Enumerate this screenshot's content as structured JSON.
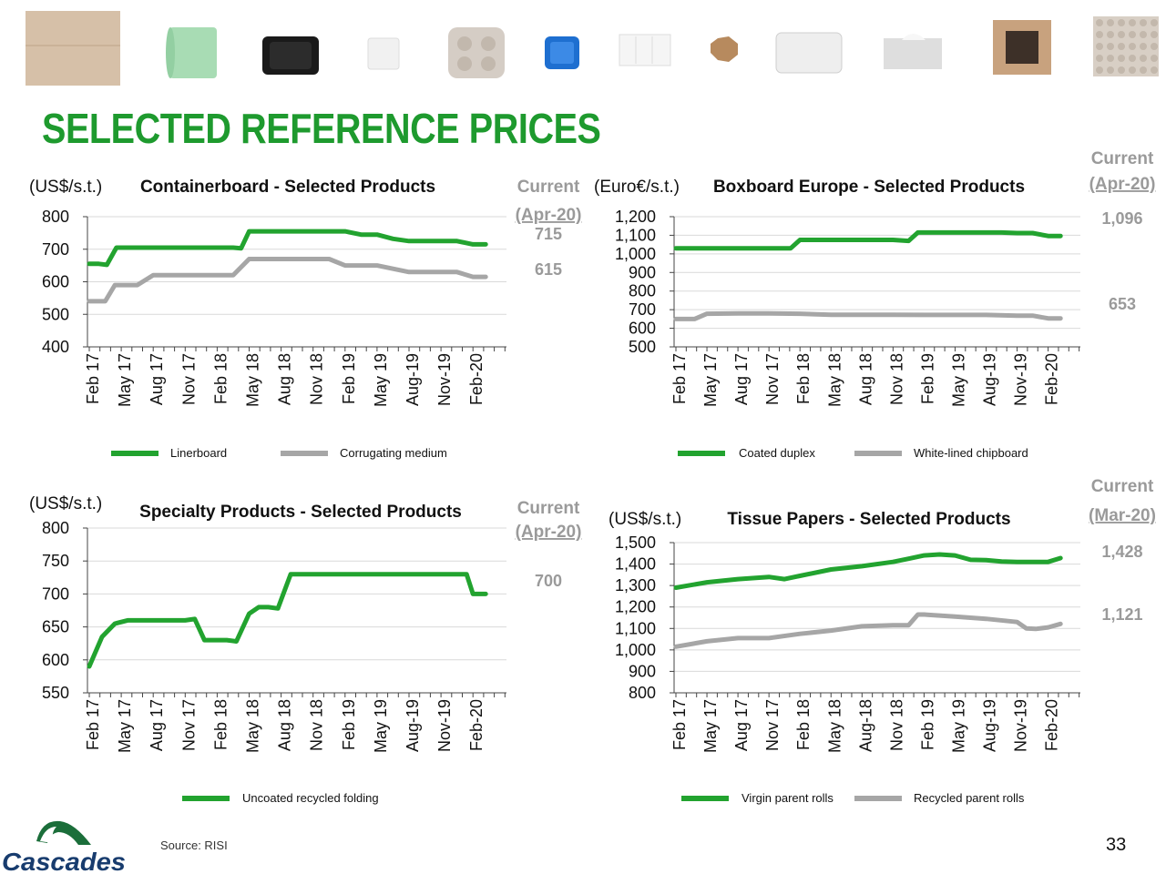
{
  "title": "SELECTED REFERENCE PRICES",
  "source": "Source: RISI",
  "page_number": "33",
  "logo_text": "Cascades",
  "colors": {
    "green": "#22a32f",
    "gray": "#a6a6a6",
    "title_green": "#1e9a2e",
    "current_gray": "#9a9a9a"
  },
  "products": [
    "box",
    "paper-roll",
    "black-tray",
    "toilet-roll",
    "cup-carrier",
    "blue-tray",
    "container",
    "octagon-carton",
    "clear-container",
    "tissue-box",
    "box-frame",
    "egg-tray"
  ],
  "chart_data": [
    {
      "type": "line",
      "title": "Containerboard - Selected Products",
      "unit": "(US$/s.t.)",
      "current_label": [
        "Current",
        "(Apr-20)"
      ],
      "ylim": [
        400,
        800
      ],
      "yticks": [
        "400",
        "500",
        "600",
        "700",
        "800"
      ],
      "categories": [
        "Feb 17",
        "May 17",
        "Aug 17",
        "Nov 17",
        "Feb 18",
        "May 18",
        "Aug 18",
        "Nov 18",
        "Feb 19",
        "May 19",
        "Aug-19",
        "Nov-19",
        "Feb-20"
      ],
      "grid": true,
      "legend_position": "bottom",
      "series": [
        {
          "name": "Linerboard",
          "color": "green",
          "current_value": "715",
          "x": [
            0,
            0.3,
            0.55,
            0.85,
            1.1,
            1.5,
            2,
            3,
            4,
            4.5,
            4.75,
            5,
            5.5,
            6,
            7,
            8,
            8.5,
            9,
            9.5,
            10,
            10.5,
            11,
            11.5,
            12,
            12.4
          ],
          "y": [
            655,
            655,
            652,
            705,
            705,
            705,
            705,
            705,
            705,
            705,
            703,
            755,
            755,
            755,
            755,
            755,
            745,
            745,
            732,
            725,
            725,
            725,
            725,
            715,
            715
          ]
        },
        {
          "name": "Corrugating medium",
          "color": "gray",
          "current_value": "615",
          "x": [
            0,
            0.5,
            0.8,
            1.5,
            2,
            2.5,
            3,
            4,
            4.5,
            5,
            6,
            7,
            7.5,
            8,
            8.5,
            9,
            9.5,
            10,
            10.5,
            11,
            11.5,
            12,
            12.4
          ],
          "y": [
            540,
            540,
            590,
            590,
            620,
            620,
            620,
            620,
            620,
            670,
            670,
            670,
            670,
            650,
            650,
            650,
            640,
            630,
            630,
            630,
            630,
            615,
            615
          ]
        }
      ]
    },
    {
      "type": "line",
      "title": "Boxboard Europe - Selected Products",
      "unit": "(Euro€/s.t.)",
      "current_label": [
        "Current",
        "(Apr-20)"
      ],
      "ylim": [
        500,
        1200
      ],
      "yticks": [
        "500",
        "600",
        "700",
        "800",
        "900",
        "1,000",
        "1,100",
        "1,200"
      ],
      "categories": [
        "Feb 17",
        "May 17",
        "Aug 17",
        "Nov 17",
        "Feb 18",
        "May 18",
        "Aug 18",
        "Nov 18",
        "Feb 19",
        "May 19",
        "Aug-19",
        "Nov-19",
        "Feb-20"
      ],
      "grid": true,
      "legend_position": "bottom",
      "series": [
        {
          "name": "Coated duplex",
          "color": "green",
          "current_value": "1,096",
          "x": [
            0,
            1,
            2,
            3,
            3.5,
            3.7,
            4,
            5,
            6,
            7,
            7.5,
            7.8,
            8,
            9,
            10,
            10.5,
            11,
            11.5,
            12,
            12.4
          ],
          "y": [
            1030,
            1030,
            1030,
            1030,
            1030,
            1030,
            1075,
            1075,
            1075,
            1075,
            1070,
            1115,
            1115,
            1115,
            1115,
            1115,
            1112,
            1112,
            1096,
            1096
          ]
        },
        {
          "name": "White-lined chipboard",
          "color": "gray",
          "current_value": "653",
          "x": [
            0,
            0.6,
            1,
            2,
            3,
            4,
            5,
            6,
            7,
            8,
            9,
            10,
            11,
            11.5,
            12,
            12.4
          ],
          "y": [
            650,
            650,
            678,
            680,
            680,
            678,
            673,
            673,
            673,
            672,
            672,
            672,
            668,
            668,
            653,
            653
          ]
        }
      ]
    },
    {
      "type": "line",
      "title": "Specialty Products - Selected Products",
      "unit": "(US$/s.t.)",
      "current_label": [
        "Current",
        "(Apr-20)"
      ],
      "ylim": [
        550,
        800
      ],
      "yticks": [
        "550",
        "600",
        "650",
        "700",
        "750",
        "800"
      ],
      "categories": [
        "Feb 17",
        "May 17",
        "Aug 17",
        "Nov 17",
        "Feb 18",
        "May 18",
        "Aug 18",
        "Nov 18",
        "Feb 19",
        "May 19",
        "Aug-19",
        "Nov-19",
        "Feb-20"
      ],
      "grid": true,
      "legend_position": "bottom",
      "series": [
        {
          "name": "Uncoated recycled folding",
          "color": "green",
          "current_value": "700",
          "x": [
            0,
            0.4,
            0.8,
            1.2,
            2,
            3,
            3.3,
            3.6,
            4,
            4.3,
            4.6,
            5,
            5.3,
            5.6,
            5.9,
            6.3,
            7,
            8,
            9,
            10,
            11,
            11.5,
            11.8,
            12,
            12.4
          ],
          "y": [
            590,
            635,
            655,
            660,
            660,
            660,
            662,
            630,
            630,
            630,
            628,
            670,
            680,
            680,
            678,
            730,
            730,
            730,
            730,
            730,
            730,
            730,
            730,
            700,
            700
          ]
        }
      ]
    },
    {
      "type": "line",
      "title": "Tissue Papers - Selected Products",
      "unit": "(US$/s.t.)",
      "current_label": [
        "Current",
        "(Mar-20)"
      ],
      "ylim": [
        800,
        1500
      ],
      "yticks": [
        "800",
        "900",
        "1,000",
        "1,100",
        "1,200",
        "1,300",
        "1,400",
        "1,500"
      ],
      "categories": [
        "Feb 17",
        "May 17",
        "Aug 17",
        "Nov 17",
        "Feb 18",
        "May 18",
        "Aug-18",
        "Nov 18",
        "Feb 19",
        "May 19",
        "Aug-19",
        "Nov-19",
        "Feb-20"
      ],
      "grid": true,
      "legend_position": "bottom",
      "series": [
        {
          "name": "Virgin parent rolls",
          "color": "green",
          "current_value": "1,428",
          "x": [
            0,
            1,
            2,
            3,
            3.5,
            4,
            5,
            6,
            7,
            7.5,
            8,
            8.5,
            9,
            9.5,
            10,
            10.5,
            11,
            11.5,
            12,
            12.4
          ],
          "y": [
            1290,
            1315,
            1330,
            1340,
            1330,
            1345,
            1375,
            1390,
            1410,
            1425,
            1440,
            1445,
            1440,
            1420,
            1418,
            1412,
            1410,
            1410,
            1410,
            1428
          ]
        },
        {
          "name": "Recycled parent rolls",
          "color": "gray",
          "current_value": "1,121",
          "x": [
            0,
            1,
            2,
            3,
            4,
            5,
            6,
            7,
            7.5,
            7.8,
            8,
            9,
            10,
            11,
            11.3,
            11.6,
            12,
            12.4
          ],
          "y": [
            1015,
            1040,
            1055,
            1055,
            1075,
            1090,
            1110,
            1115,
            1115,
            1165,
            1165,
            1155,
            1145,
            1130,
            1100,
            1098,
            1105,
            1121
          ]
        }
      ]
    }
  ]
}
